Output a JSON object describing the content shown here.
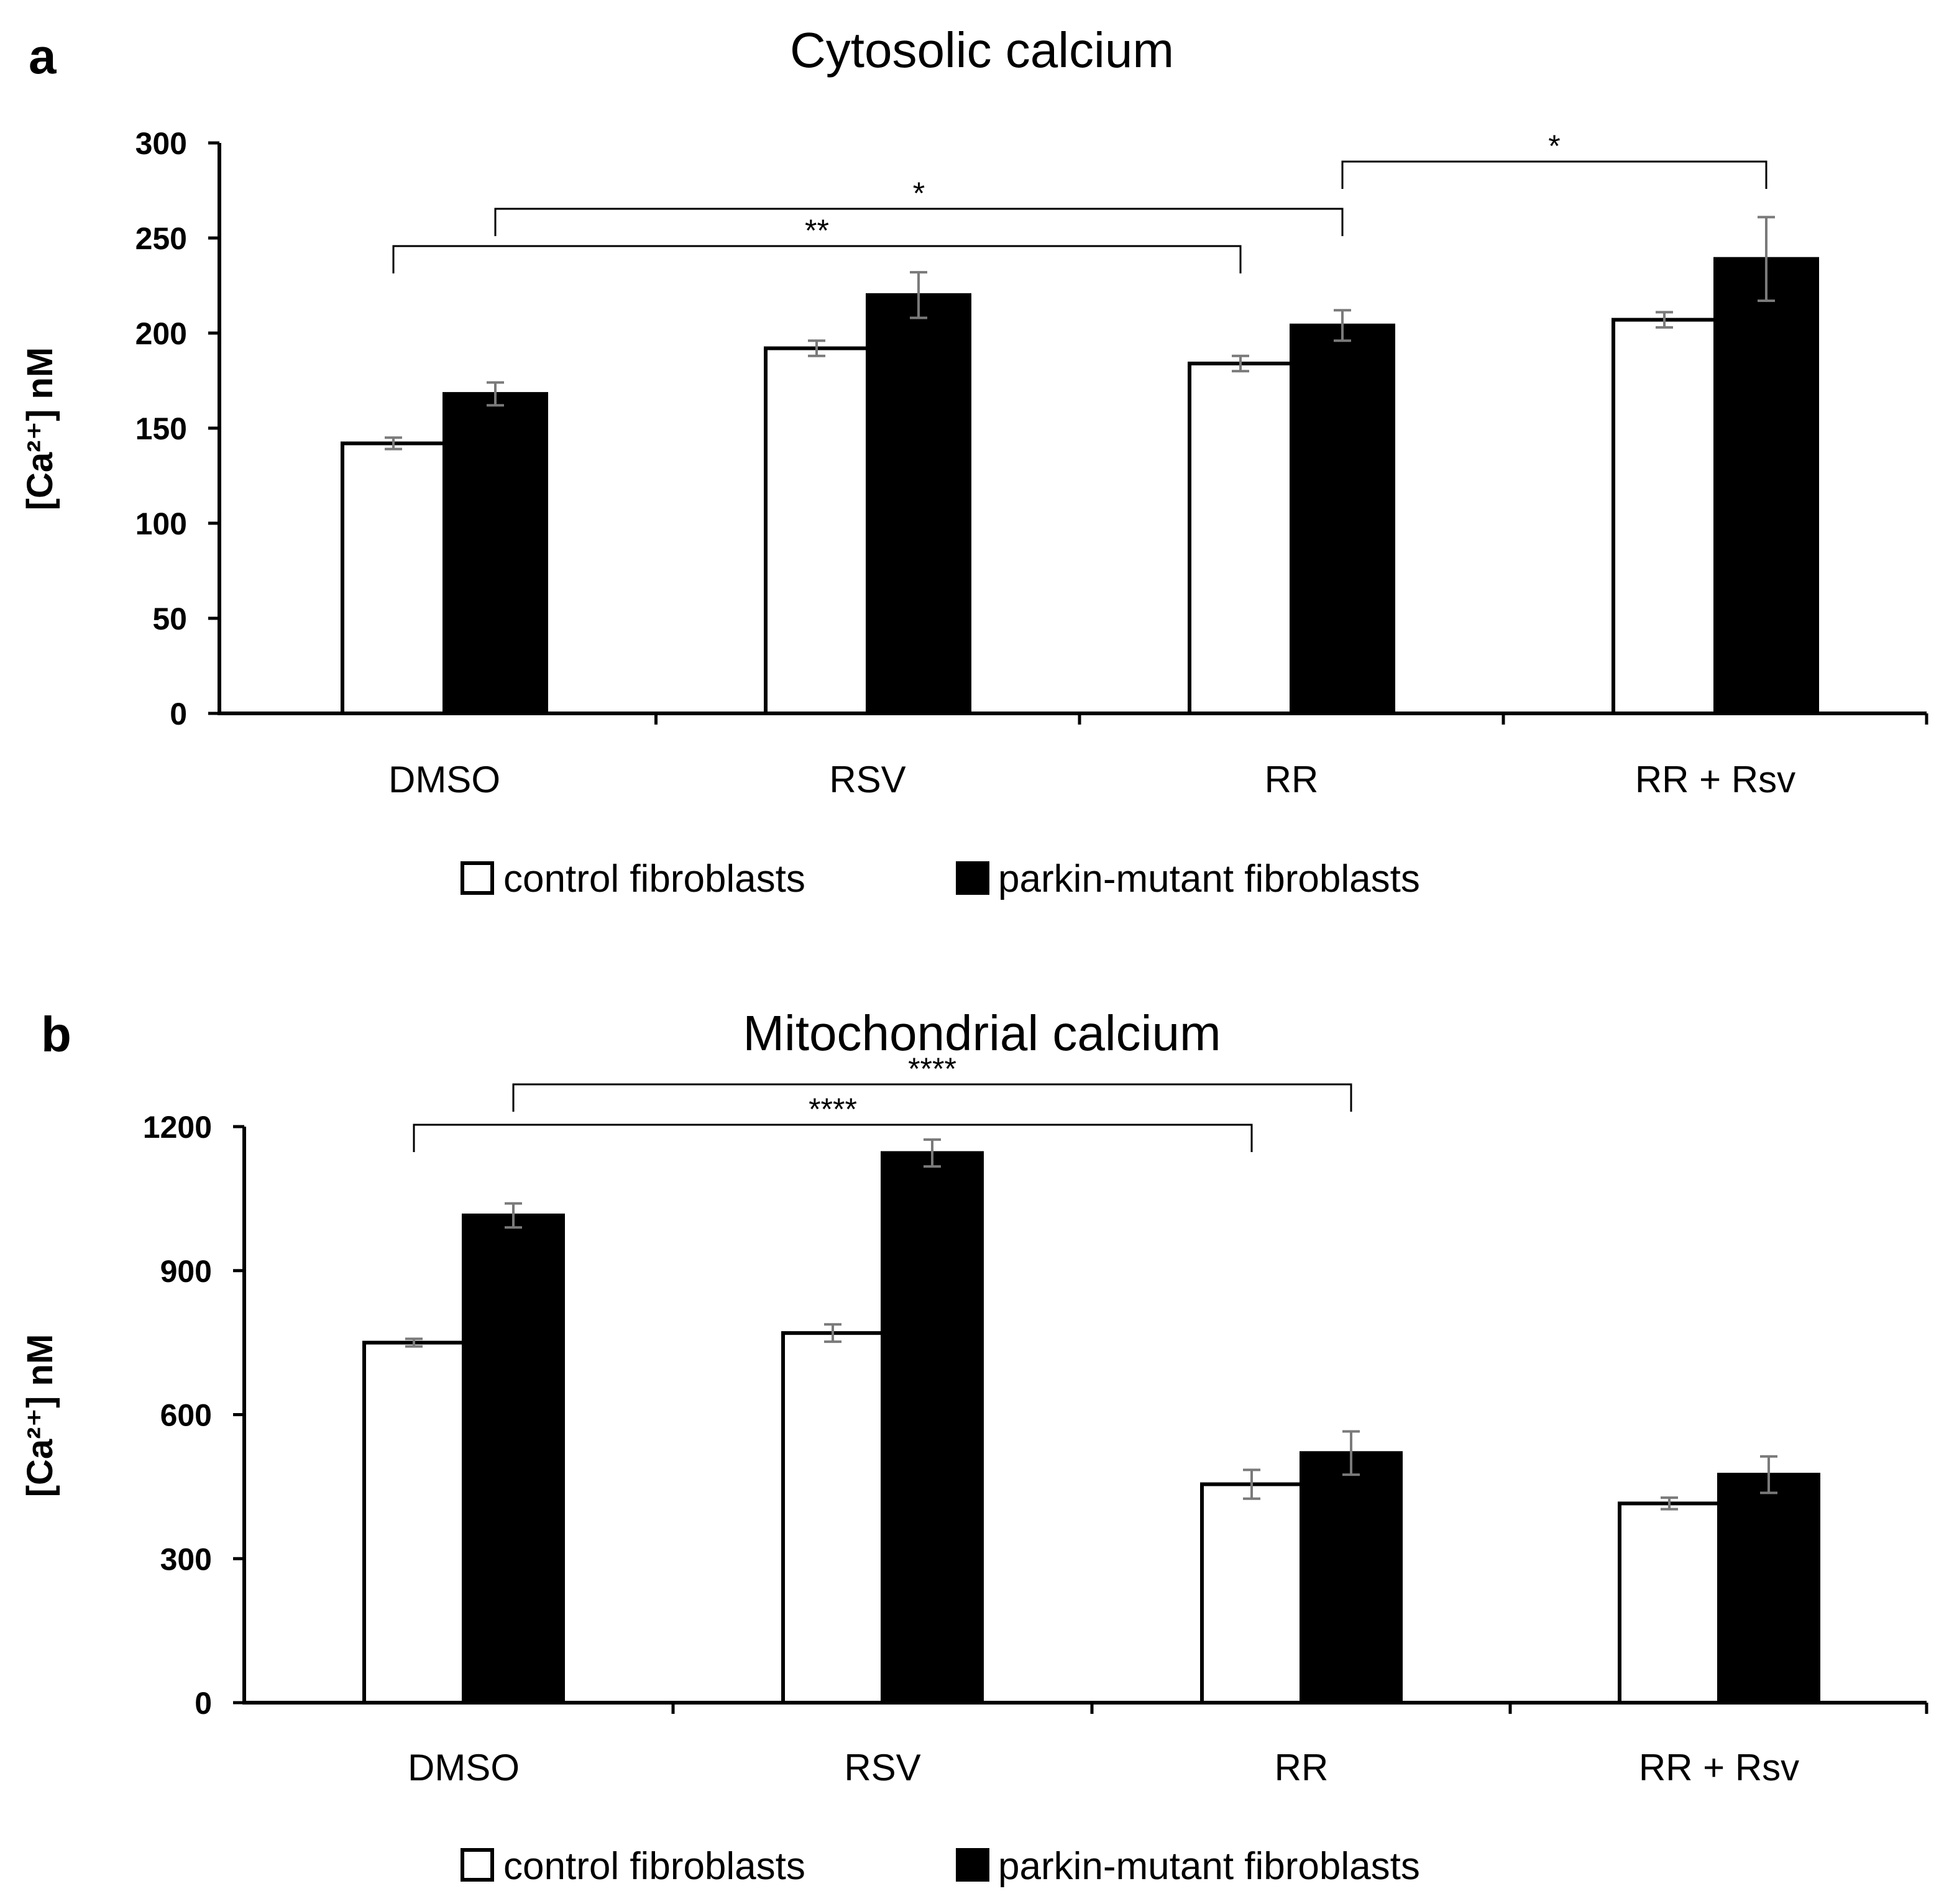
{
  "figure": {
    "legend": {
      "control_label": "control fibroblasts",
      "mutant_label": "parkin-mutant fibroblasts"
    }
  },
  "chart_data": [
    {
      "panel_label": "a",
      "type": "bar",
      "title": "Cytosolic calcium",
      "ylabel": "[Ca²⁺] nM",
      "xlabel": "",
      "categories": [
        "DMSO",
        "RSV",
        "RR",
        "RR + Rsv"
      ],
      "ylim": [
        0,
        300
      ],
      "yticks": [
        0,
        50,
        100,
        150,
        200,
        250,
        300
      ],
      "grid": false,
      "legend_position": "bottom",
      "series": [
        {
          "name": "control fibroblasts",
          "fill": "#ffffff",
          "values": [
            142,
            192,
            184,
            207
          ],
          "errors": [
            3,
            4,
            4,
            4
          ]
        },
        {
          "name": "parkin-mutant fibroblasts",
          "fill": "#000000",
          "values": [
            168,
            220,
            204,
            239
          ],
          "errors": [
            6,
            12,
            8,
            22
          ]
        }
      ],
      "significance": [
        {
          "label": "**",
          "from": {
            "category": "DMSO",
            "series": "control fibroblasts"
          },
          "to": {
            "category": "RR",
            "series": "control fibroblasts"
          }
        },
        {
          "label": "*",
          "from": {
            "category": "DMSO",
            "series": "parkin-mutant fibroblasts"
          },
          "to": {
            "category": "RR",
            "series": "parkin-mutant fibroblasts"
          }
        },
        {
          "label": "*",
          "from": {
            "category": "RR",
            "series": "parkin-mutant fibroblasts"
          },
          "to": {
            "category": "RR + Rsv",
            "series": "parkin-mutant fibroblasts"
          }
        }
      ]
    },
    {
      "panel_label": "b",
      "type": "bar",
      "title": "Mitochondrial calcium",
      "ylabel": "[Ca²⁺] nM",
      "xlabel": "",
      "categories": [
        "DMSO",
        "RSV",
        "RR",
        "RR + Rsv"
      ],
      "ylim": [
        0,
        1200
      ],
      "yticks": [
        0,
        300,
        600,
        900,
        1200
      ],
      "grid": false,
      "legend_position": "bottom",
      "series": [
        {
          "name": "control fibroblasts",
          "fill": "#ffffff",
          "values": [
            750,
            770,
            455,
            415
          ],
          "errors": [
            8,
            18,
            30,
            12
          ]
        },
        {
          "name": "parkin-mutant fibroblasts",
          "fill": "#000000",
          "values": [
            1015,
            1145,
            520,
            475
          ],
          "errors": [
            25,
            28,
            45,
            38
          ]
        }
      ],
      "significance": [
        {
          "label": "****",
          "from": {
            "category": "DMSO",
            "series": "control fibroblasts"
          },
          "to": {
            "category": "RR",
            "series": "control fibroblasts"
          }
        },
        {
          "label": "****",
          "from": {
            "category": "DMSO",
            "series": "parkin-mutant fibroblasts"
          },
          "to": {
            "category": "RR",
            "series": "parkin-mutant fibroblasts"
          }
        }
      ]
    }
  ]
}
